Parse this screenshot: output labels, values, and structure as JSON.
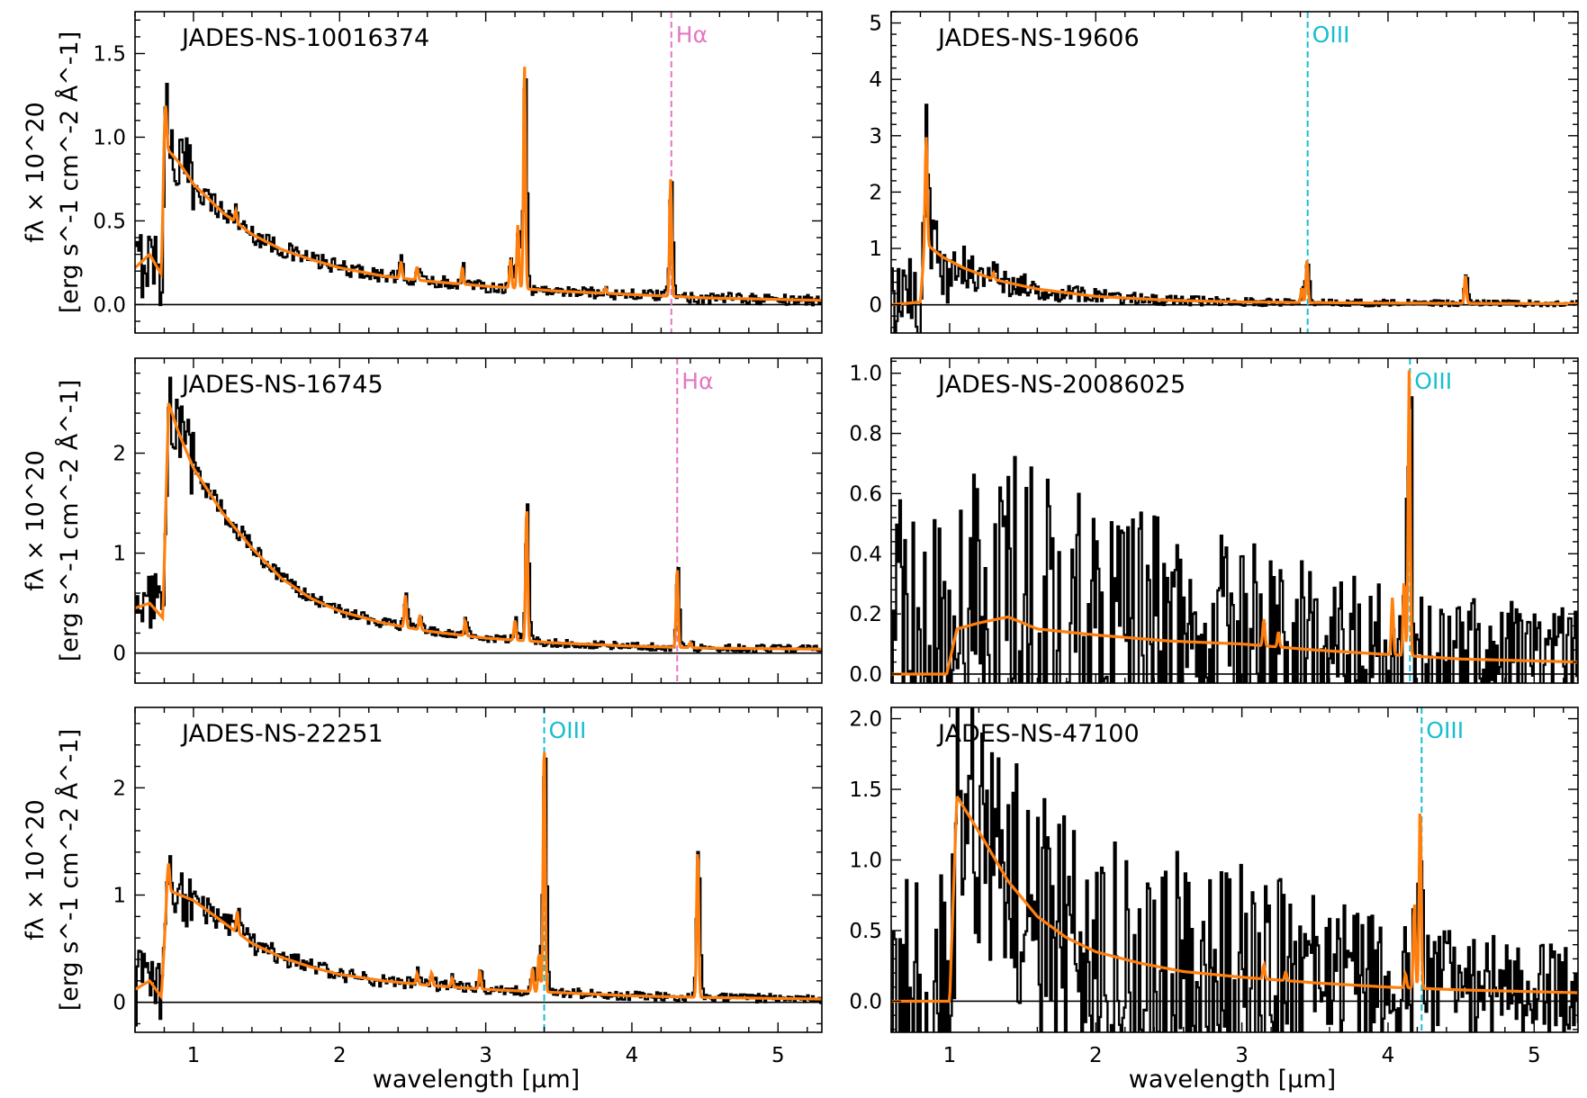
{
  "figure": {
    "xlabel": "wavelength [µm]",
    "ylabel_line1": "fλ × 10^20",
    "ylabel_line2": "[erg s^-1 cm^-2 Å^-1]",
    "colors": {
      "observed": "#000000",
      "model": "#ff7f0e",
      "halpha": "#e377c2",
      "oiii": "#17becf"
    }
  },
  "chart_data": [
    {
      "type": "line",
      "panel": "top-left",
      "title": "JADES-NS-10016374",
      "xlim": [
        0.6,
        5.3
      ],
      "ylim": [
        -0.17,
        1.75
      ],
      "yticks": [
        0.0,
        0.5,
        1.0,
        1.5
      ],
      "ytick_labels": [
        "0.0",
        "0.5",
        "1.0",
        "1.5"
      ],
      "xticks": [
        1,
        2,
        3,
        4,
        5
      ],
      "line_marker": {
        "label": "Hα",
        "x": 4.27,
        "color": "#e377c2"
      },
      "continuum": [
        [
          0.6,
          0.22
        ],
        [
          0.7,
          0.3
        ],
        [
          0.78,
          0.18
        ],
        [
          0.8,
          0.95
        ],
        [
          0.9,
          0.85
        ],
        [
          1.0,
          0.72
        ],
        [
          1.2,
          0.55
        ],
        [
          1.4,
          0.42
        ],
        [
          1.6,
          0.33
        ],
        [
          1.8,
          0.27
        ],
        [
          2.0,
          0.22
        ],
        [
          2.3,
          0.17
        ],
        [
          2.6,
          0.14
        ],
        [
          3.0,
          0.11
        ],
        [
          3.5,
          0.08
        ],
        [
          4.0,
          0.06
        ],
        [
          4.5,
          0.04
        ],
        [
          5.3,
          0.025
        ]
      ],
      "emission_lines": [
        [
          0.81,
          0.25
        ],
        [
          1.29,
          0.07
        ],
        [
          2.42,
          0.1
        ],
        [
          2.53,
          0.08
        ],
        [
          2.84,
          0.1
        ],
        [
          3.17,
          0.17
        ],
        [
          3.22,
          0.38
        ],
        [
          3.265,
          1.35
        ],
        [
          3.82,
          0.03
        ],
        [
          4.265,
          0.7
        ]
      ],
      "model_emission_scale": 1.0,
      "noise": {
        "amplitude": 0.05,
        "early_amplitude": 0.22
      }
    },
    {
      "type": "line",
      "panel": "top-right",
      "title": "JADES-NS-19606",
      "xlim": [
        0.6,
        5.3
      ],
      "ylim": [
        -0.5,
        5.2
      ],
      "yticks": [
        0,
        1,
        2,
        3,
        4,
        5
      ],
      "ytick_labels": [
        "0",
        "1",
        "2",
        "3",
        "4",
        "5"
      ],
      "xticks": [
        1,
        2,
        3,
        4,
        5
      ],
      "line_marker": {
        "label": "OIII",
        "x": 3.45,
        "color": "#17becf"
      },
      "continuum": [
        [
          0.6,
          0.0
        ],
        [
          0.8,
          0.05
        ],
        [
          0.83,
          1.1
        ],
        [
          0.95,
          0.85
        ],
        [
          1.1,
          0.65
        ],
        [
          1.3,
          0.45
        ],
        [
          1.6,
          0.28
        ],
        [
          2.0,
          0.15
        ],
        [
          2.5,
          0.08
        ],
        [
          3.0,
          0.05
        ],
        [
          3.5,
          0.04
        ],
        [
          4.0,
          0.03
        ],
        [
          5.3,
          0.02
        ]
      ],
      "emission_lines": [
        [
          0.84,
          1.9
        ],
        [
          1.3,
          0.12
        ],
        [
          3.41,
          0.25
        ],
        [
          3.445,
          0.75
        ],
        [
          4.53,
          0.5
        ]
      ],
      "model_emission_scale": 1.0,
      "noise": {
        "amplitude": 0.07,
        "early_amplitude": 0.8
      }
    },
    {
      "type": "line",
      "panel": "middle-left",
      "title": "JADES-NS-16745",
      "xlim": [
        0.6,
        5.3
      ],
      "ylim": [
        -0.3,
        2.95
      ],
      "yticks": [
        0,
        1,
        2
      ],
      "ytick_labels": [
        "0",
        "1",
        "2"
      ],
      "xticks": [
        1,
        2,
        3,
        4,
        5
      ],
      "line_marker": {
        "label": "Hα",
        "x": 4.31,
        "color": "#e377c2"
      },
      "continuum": [
        [
          0.6,
          0.45
        ],
        [
          0.7,
          0.5
        ],
        [
          0.79,
          0.35
        ],
        [
          0.83,
          2.5
        ],
        [
          0.9,
          2.2
        ],
        [
          1.0,
          1.85
        ],
        [
          1.2,
          1.4
        ],
        [
          1.4,
          1.05
        ],
        [
          1.6,
          0.75
        ],
        [
          1.8,
          0.55
        ],
        [
          2.0,
          0.42
        ],
        [
          2.3,
          0.3
        ],
        [
          2.6,
          0.22
        ],
        [
          3.0,
          0.15
        ],
        [
          3.5,
          0.1
        ],
        [
          4.0,
          0.07
        ],
        [
          4.5,
          0.05
        ],
        [
          5.3,
          0.04
        ]
      ],
      "emission_lines": [
        [
          2.45,
          0.32
        ],
        [
          2.55,
          0.15
        ],
        [
          2.86,
          0.15
        ],
        [
          3.2,
          0.2
        ],
        [
          3.28,
          1.35
        ],
        [
          4.31,
          0.8
        ],
        [
          4.4,
          0.05
        ]
      ],
      "model_emission_scale": 1.0,
      "noise": {
        "amplitude": 0.06,
        "early_amplitude": 0.35
      }
    },
    {
      "type": "line",
      "panel": "middle-right",
      "title": "JADES-NS-20086025",
      "xlim": [
        0.6,
        5.3
      ],
      "ylim": [
        -0.03,
        1.05
      ],
      "yticks": [
        0.0,
        0.2,
        0.4,
        0.6,
        0.8,
        1.0
      ],
      "ytick_labels": [
        "0.0",
        "0.2",
        "0.4",
        "0.6",
        "0.8",
        "1.0"
      ],
      "xticks": [
        1,
        2,
        3,
        4,
        5
      ],
      "line_marker": {
        "label": "OIII",
        "x": 4.15,
        "color": "#17becf"
      },
      "continuum": [
        [
          0.6,
          0.0
        ],
        [
          0.98,
          0.0
        ],
        [
          1.05,
          0.15
        ],
        [
          1.2,
          0.17
        ],
        [
          1.4,
          0.19
        ],
        [
          1.6,
          0.15
        ],
        [
          2.0,
          0.13
        ],
        [
          2.5,
          0.11
        ],
        [
          3.0,
          0.1
        ],
        [
          3.5,
          0.08
        ],
        [
          4.0,
          0.065
        ],
        [
          4.5,
          0.05
        ],
        [
          5.3,
          0.04
        ]
      ],
      "emission_lines": [
        [
          3.15,
          0.09
        ],
        [
          3.25,
          0.05
        ],
        [
          4.03,
          0.19
        ],
        [
          4.11,
          0.25
        ],
        [
          4.145,
          0.95
        ]
      ],
      "model_emission_scale": 1.0,
      "noise": {
        "amplitude": 0.08,
        "early_amplitude": 0.6
      }
    },
    {
      "type": "line",
      "panel": "bottom-left",
      "title": "JADES-NS-22251",
      "xlim": [
        0.6,
        5.3
      ],
      "ylim": [
        -0.28,
        2.75
      ],
      "yticks": [
        0,
        1,
        2
      ],
      "ytick_labels": [
        "0",
        "1",
        "2"
      ],
      "xticks": [
        1,
        2,
        3,
        4,
        5
      ],
      "xtick_labels": [
        "1",
        "2",
        "3",
        "4",
        "5"
      ],
      "line_marker": {
        "label": "OIII",
        "x": 3.4,
        "color": "#17becf"
      },
      "continuum": [
        [
          0.6,
          0.12
        ],
        [
          0.7,
          0.2
        ],
        [
          0.78,
          0.05
        ],
        [
          0.82,
          1.05
        ],
        [
          1.0,
          0.95
        ],
        [
          1.2,
          0.75
        ],
        [
          1.4,
          0.55
        ],
        [
          1.6,
          0.42
        ],
        [
          1.8,
          0.33
        ],
        [
          2.0,
          0.26
        ],
        [
          2.3,
          0.2
        ],
        [
          2.6,
          0.16
        ],
        [
          3.0,
          0.12
        ],
        [
          3.5,
          0.09
        ],
        [
          4.0,
          0.06
        ],
        [
          4.5,
          0.045
        ],
        [
          5.3,
          0.03
        ]
      ],
      "emission_lines": [
        [
          0.83,
          0.25
        ],
        [
          1.3,
          0.2
        ],
        [
          2.53,
          0.1
        ],
        [
          2.63,
          0.12
        ],
        [
          2.77,
          0.08
        ],
        [
          2.96,
          0.17
        ],
        [
          3.32,
          0.22
        ],
        [
          3.365,
          0.35
        ],
        [
          3.4,
          2.35
        ],
        [
          4.45,
          1.4
        ]
      ],
      "model_emission_scale": 1.0,
      "noise": {
        "amplitude": 0.06,
        "early_amplitude": 0.35
      }
    },
    {
      "type": "line",
      "panel": "bottom-right",
      "title": "JADES-NS-47100",
      "xlim": [
        0.6,
        5.3
      ],
      "ylim": [
        -0.22,
        2.08
      ],
      "yticks": [
        0.0,
        0.5,
        1.0,
        1.5,
        2.0
      ],
      "ytick_labels": [
        "0.0",
        "0.5",
        "1.0",
        "1.5",
        "2.0"
      ],
      "xticks": [
        1,
        2,
        3,
        4,
        5
      ],
      "xtick_labels": [
        "1",
        "2",
        "3",
        "4",
        "5"
      ],
      "line_marker": {
        "label": "OIII",
        "x": 4.23,
        "color": "#17becf"
      },
      "continuum": [
        [
          0.6,
          0.0
        ],
        [
          1.0,
          0.0
        ],
        [
          1.05,
          1.45
        ],
        [
          1.2,
          1.2
        ],
        [
          1.4,
          0.85
        ],
        [
          1.6,
          0.6
        ],
        [
          1.8,
          0.45
        ],
        [
          2.0,
          0.35
        ],
        [
          2.3,
          0.27
        ],
        [
          2.6,
          0.21
        ],
        [
          3.0,
          0.17
        ],
        [
          3.5,
          0.13
        ],
        [
          4.0,
          0.1
        ],
        [
          4.5,
          0.08
        ],
        [
          5.3,
          0.06
        ]
      ],
      "emission_lines": [
        [
          3.15,
          0.1
        ],
        [
          3.3,
          0.06
        ],
        [
          4.12,
          0.1
        ],
        [
          4.18,
          0.6
        ],
        [
          4.22,
          1.3
        ]
      ],
      "model_emission_scale": 1.0,
      "noise": {
        "amplitude": 0.11,
        "early_amplitude": 0.9
      }
    }
  ]
}
